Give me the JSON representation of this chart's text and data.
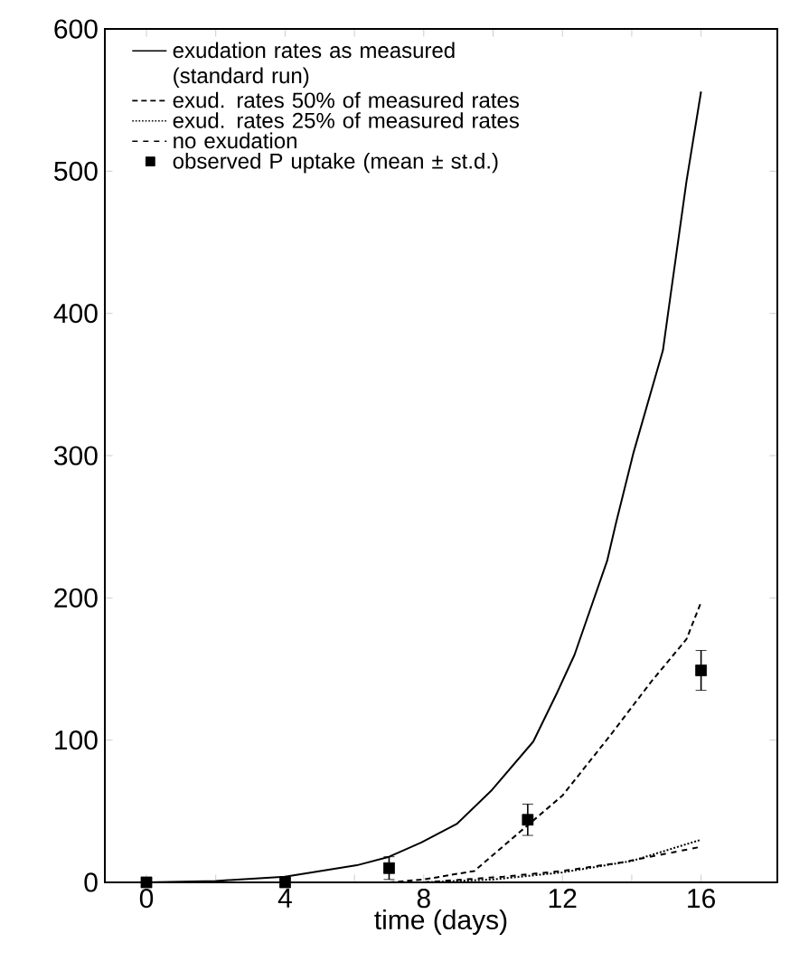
{
  "chart_data": {
    "type": "line",
    "xlabel": "time (days)",
    "xlim": [
      -1.2,
      18.2
    ],
    "ylim": [
      0,
      600
    ],
    "xticks": [
      0,
      {
        "value": 2,
        "label": null
      },
      4,
      {
        "value": 6,
        "label": null
      },
      8,
      {
        "value": 10,
        "label": null
      },
      12,
      {
        "value": 14,
        "label": null
      },
      16
    ],
    "yticks": [
      0,
      100,
      200,
      300,
      400,
      500,
      600
    ],
    "legend": "top left",
    "grid": false,
    "series": [
      {
        "name": "exudation rates as measured (standard run)",
        "color": "#000000",
        "line_style": "solid",
        "x": [
          0,
          2,
          4,
          6.07,
          7,
          7.93,
          8.95,
          9.97,
          11.16,
          11.84,
          12.35,
          13.29,
          13.54,
          14.05,
          14.9,
          15.07,
          15.58,
          16
        ],
        "values": [
          0,
          1,
          4,
          12,
          18,
          28,
          41,
          65,
          99,
          133,
          160,
          226,
          252,
          302,
          374,
          404,
          493,
          556
        ]
      },
      {
        "name": "exud. rates 50% of measured rates",
        "color": "#000000",
        "line_style": "dashed",
        "x": [
          7,
          8,
          9.46,
          10.8,
          12,
          13.37,
          14.56,
          15.58,
          16
        ],
        "values": [
          0,
          2,
          8,
          36,
          61,
          103,
          141,
          171,
          197
        ]
      },
      {
        "name": "exud. rates 25% of measured rates",
        "color": "#000000",
        "line_style": "dotted",
        "x": [
          8,
          10,
          12,
          14,
          16
        ],
        "values": [
          0,
          2,
          7,
          15,
          30
        ]
      },
      {
        "name": "no exudation",
        "color": "#000000",
        "line_style": "loosely dashed",
        "x": [
          8,
          10.3,
          12,
          13.7,
          16
        ],
        "values": [
          0,
          4,
          8,
          14,
          25
        ]
      },
      {
        "name": "observed P uptake (mean ± st.d.)",
        "type": "scatter",
        "marker": "square",
        "color": "#000000",
        "x": [
          0,
          4,
          7,
          11,
          16
        ],
        "values": [
          0,
          0,
          10,
          44,
          149
        ],
        "errors": [
          null,
          null,
          8,
          11,
          14
        ]
      }
    ]
  }
}
